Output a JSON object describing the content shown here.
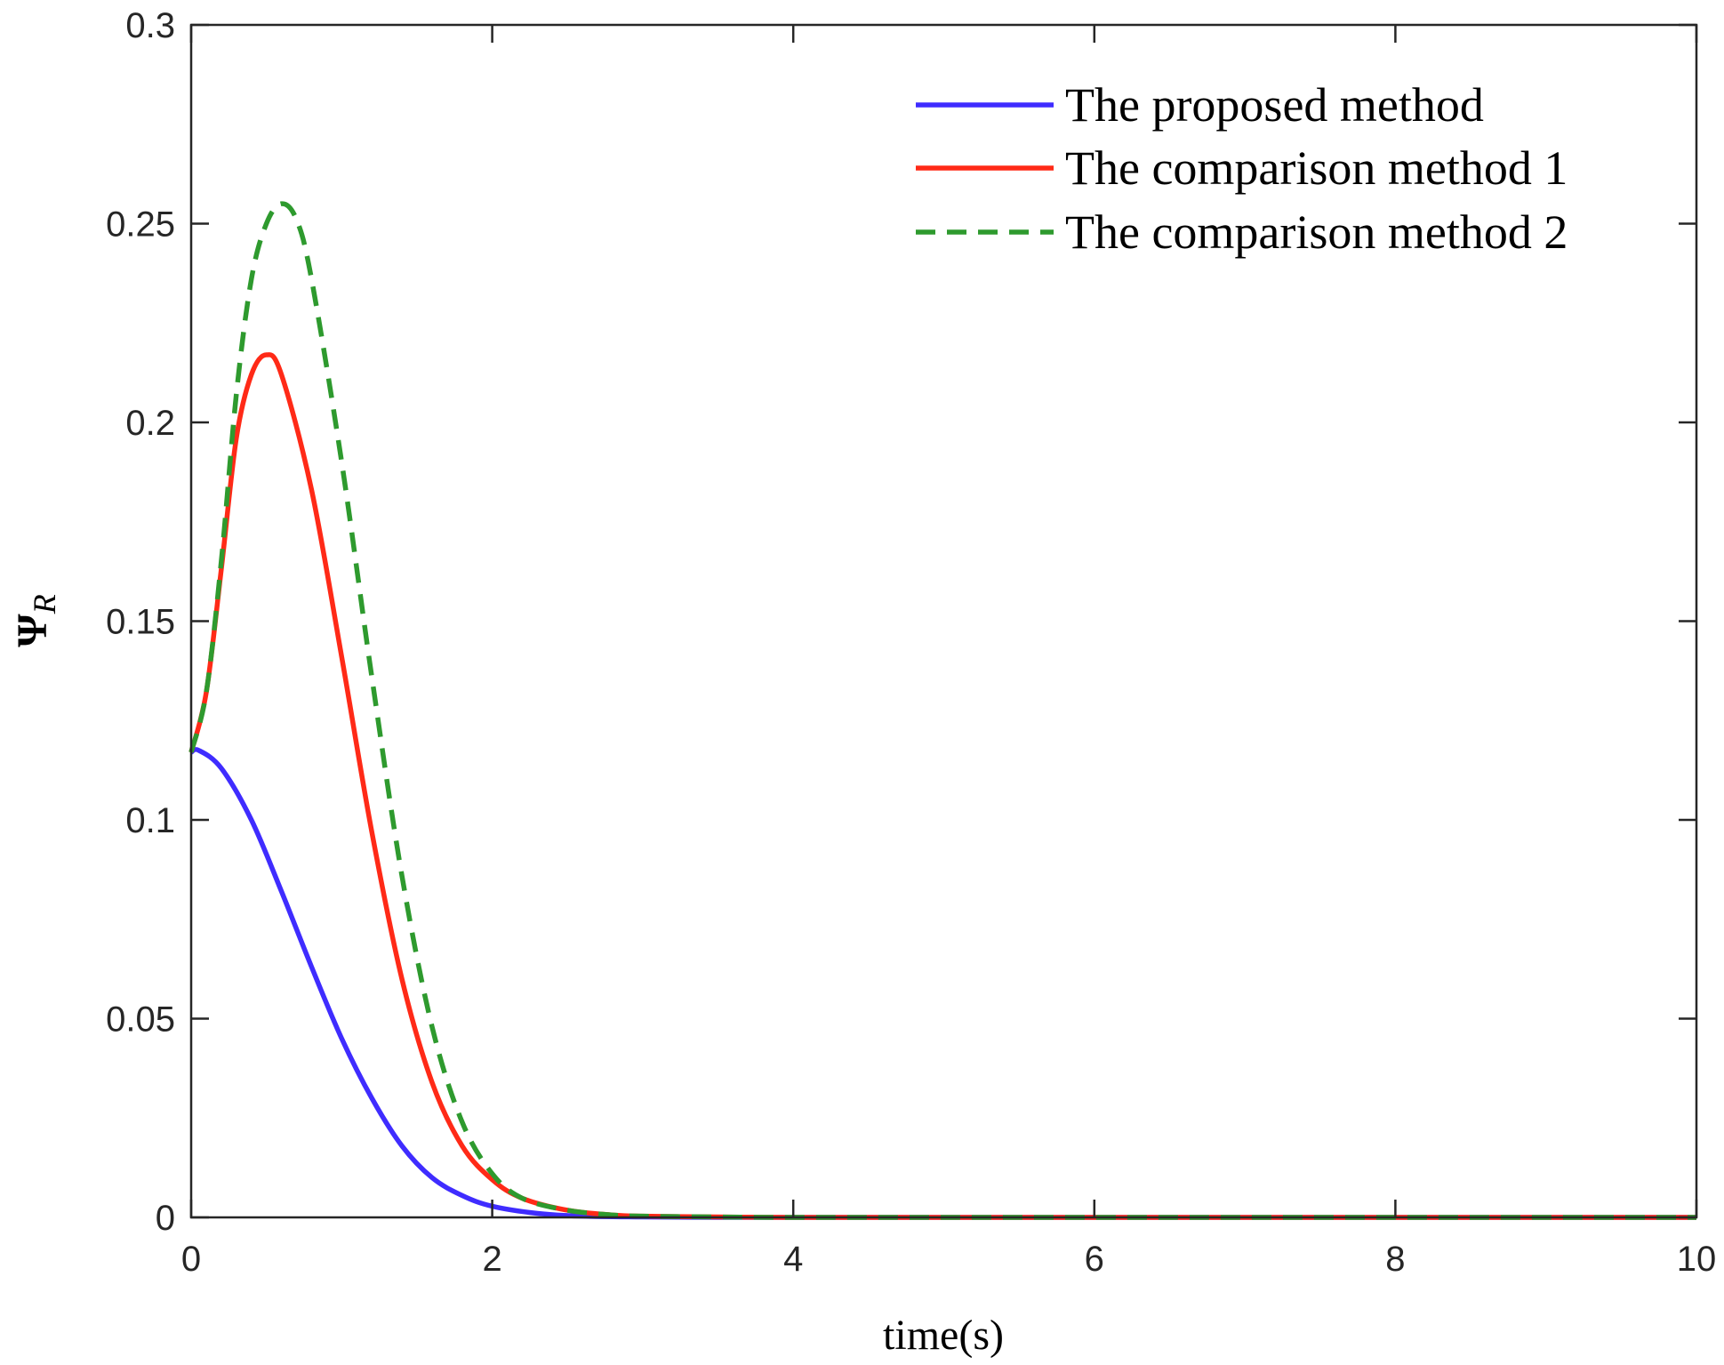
{
  "chart_data": {
    "type": "line",
    "title": "",
    "xlabel": "time(s)",
    "ylabel": "Ψ",
    "ylabel_subscript": "R",
    "xlim": [
      0,
      10
    ],
    "ylim": [
      0,
      0.3
    ],
    "xticks": [
      0,
      2,
      4,
      6,
      8,
      10
    ],
    "xtick_labels": [
      "0",
      "2",
      "4",
      "6",
      "8",
      "10"
    ],
    "yticks": [
      0,
      0.05,
      0.1,
      0.15,
      0.2,
      0.25,
      0.3
    ],
    "ytick_labels": [
      "0",
      "0.05",
      "0.1",
      "0.15",
      "0.2",
      "0.25",
      "0.3"
    ],
    "grid": false,
    "legend_position": "top-right",
    "series": [
      {
        "name": "The proposed method",
        "color": "#3f2cff",
        "style": "solid",
        "x": [
          0,
          0.05,
          0.2,
          0.4,
          0.6,
          0.8,
          1.0,
          1.2,
          1.4,
          1.6,
          1.8,
          2.0,
          2.3,
          2.6,
          3.0,
          3.5,
          4.0,
          5.0,
          6.0,
          7.0,
          8.0,
          9.0,
          10.0
        ],
        "y": [
          0.117,
          0.1175,
          0.113,
          0.1,
          0.082,
          0.063,
          0.045,
          0.03,
          0.018,
          0.01,
          0.0055,
          0.0028,
          0.001,
          0.0003,
          0.0001,
          0,
          0,
          0,
          0,
          0,
          0,
          0,
          0
        ]
      },
      {
        "name": "The comparison method 1",
        "color": "#ff2a17",
        "style": "solid",
        "x": [
          0,
          0.1,
          0.2,
          0.3,
          0.4,
          0.5,
          0.6,
          0.8,
          1.0,
          1.2,
          1.4,
          1.6,
          1.8,
          2.0,
          2.2,
          2.5,
          2.8,
          3.0,
          3.5,
          4.0,
          5.0,
          6.0,
          7.0,
          8.0,
          9.0,
          10.0
        ],
        "y": [
          0.117,
          0.132,
          0.163,
          0.196,
          0.212,
          0.217,
          0.212,
          0.183,
          0.141,
          0.097,
          0.06,
          0.034,
          0.018,
          0.0095,
          0.0048,
          0.0018,
          0.0006,
          0.0003,
          0.0001,
          0,
          0,
          0,
          0,
          0,
          0,
          0
        ]
      },
      {
        "name": "The comparison method 2",
        "color": "#2e9a2e",
        "style": "dashed",
        "x": [
          0,
          0.1,
          0.2,
          0.3,
          0.4,
          0.5,
          0.6,
          0.7,
          0.8,
          1.0,
          1.2,
          1.4,
          1.6,
          1.8,
          2.0,
          2.2,
          2.5,
          2.8,
          3.0,
          3.5,
          4.0,
          5.0,
          6.0,
          7.0,
          8.0,
          9.0,
          10.0
        ],
        "y": [
          0.117,
          0.132,
          0.165,
          0.207,
          0.236,
          0.25,
          0.255,
          0.251,
          0.236,
          0.19,
          0.136,
          0.086,
          0.048,
          0.024,
          0.011,
          0.0048,
          0.0018,
          0.0006,
          0.0003,
          0.0001,
          0,
          0,
          0,
          0,
          0,
          0,
          0
        ]
      }
    ]
  }
}
